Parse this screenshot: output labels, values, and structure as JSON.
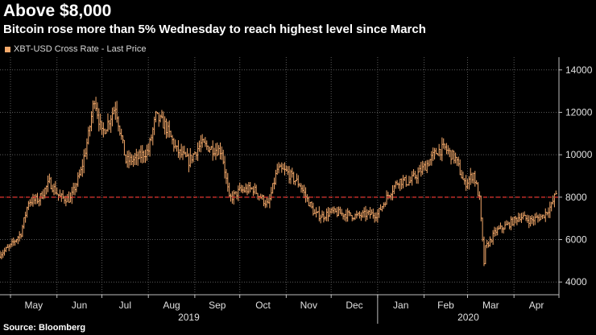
{
  "chart_data": {
    "type": "ohlc",
    "title": "Above $8,000",
    "subtitle": "Bitcoin rose more than 5% Wednesday to reach highest level since March",
    "legend": [
      "XBT-USD Cross Rate - Last Price"
    ],
    "source": "Source: Bloomberg",
    "xlabel": "",
    "ylabel": "",
    "ylim": [
      3400,
      14600
    ],
    "yticks": [
      4000,
      6000,
      8000,
      10000,
      12000,
      14000
    ],
    "ytick_labels": [
      "4000",
      "6000",
      "8000",
      "10000",
      "12000",
      "14000"
    ],
    "month_labels": [
      "May",
      "Jun",
      "Jul",
      "Aug",
      "Sep",
      "Oct",
      "Nov",
      "Dec",
      "Jan",
      "Feb",
      "Mar",
      "Apr"
    ],
    "year_labels": [
      "2019",
      "2020"
    ],
    "reference_line": {
      "value": 8000,
      "style": "dashed"
    },
    "series_color": "#f4a96a",
    "ref_color": "#e3342f",
    "grid": true,
    "series": [
      {
        "name": "XBT-USD Cross Rate - Last Price",
        "x": [
          "2019-04-24",
          "2019-05-01",
          "2019-05-08",
          "2019-05-13",
          "2019-05-20",
          "2019-05-27",
          "2019-06-03",
          "2019-06-10",
          "2019-06-17",
          "2019-06-22",
          "2019-06-26",
          "2019-07-01",
          "2019-07-05",
          "2019-07-10",
          "2019-07-17",
          "2019-07-24",
          "2019-08-01",
          "2019-08-06",
          "2019-08-12",
          "2019-08-20",
          "2019-08-28",
          "2019-09-05",
          "2019-09-12",
          "2019-09-19",
          "2019-09-24",
          "2019-10-01",
          "2019-10-10",
          "2019-10-20",
          "2019-10-26",
          "2019-11-01",
          "2019-11-10",
          "2019-11-20",
          "2019-11-25",
          "2019-12-01",
          "2019-12-10",
          "2019-12-18",
          "2019-12-25",
          "2020-01-01",
          "2020-01-08",
          "2020-01-15",
          "2020-01-22",
          "2020-02-01",
          "2020-02-10",
          "2020-02-15",
          "2020-02-22",
          "2020-02-28",
          "2020-03-05",
          "2020-03-09",
          "2020-03-12",
          "2020-03-13",
          "2020-03-20",
          "2020-03-28",
          "2020-04-05",
          "2020-04-12",
          "2020-04-20",
          "2020-04-26",
          "2020-04-29"
        ],
        "values": [
          5300,
          5700,
          6300,
          7800,
          7900,
          8700,
          8000,
          7900,
          9200,
          10900,
          12700,
          11000,
          11500,
          12300,
          9700,
          9800,
          10200,
          11800,
          11400,
          10200,
          9700,
          10500,
          10300,
          10200,
          7900,
          8300,
          8400,
          7600,
          9300,
          9200,
          8600,
          7200,
          7100,
          7300,
          7200,
          7100,
          7200,
          7200,
          8100,
          8800,
          8700,
          9400,
          10200,
          10300,
          9800,
          8600,
          9100,
          7900,
          4900,
          5600,
          6400,
          6700,
          7100,
          6900,
          7100,
          7600,
          8200
        ]
      }
    ]
  }
}
